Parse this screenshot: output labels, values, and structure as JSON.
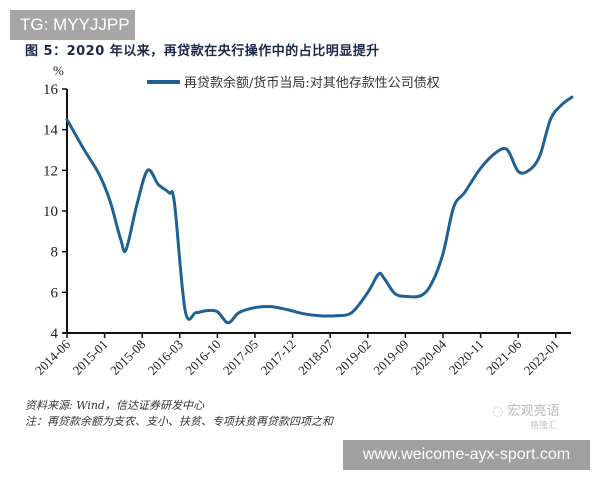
{
  "overlay": {
    "tg_label": "TG: MYYJJPP",
    "url_label": "www.weicome-ayx-sport.com"
  },
  "figure": {
    "title": "图 5：2020 年以来，再贷款在央行操作中的占比明显提升",
    "unit": "%",
    "legend_label": "再贷款余额/货币当局:对其他存款性公司债权",
    "source_line": "资料来源: Wind，信达证券研发中心",
    "note_line": "注：再贷款余额为支农、支小、扶贫、专项扶贫再贷款四项之和",
    "watermark_main": "宏观亮语",
    "watermark_sub": "格隆汇",
    "line_color": "#1f6193"
  },
  "chart_data": {
    "type": "line",
    "title": "图 5：2020 年以来，再贷款在央行操作中的占比明显提升",
    "xlabel": "",
    "ylabel": "%",
    "ylim": [
      4,
      16
    ],
    "yticks": [
      4,
      6,
      8,
      10,
      12,
      14,
      16
    ],
    "xticks": [
      "2014-06",
      "2015-01",
      "2015-08",
      "2016-03",
      "2016-10",
      "2017-05",
      "2017-12",
      "2018-07",
      "2019-02",
      "2019-09",
      "2020-04",
      "2020-11",
      "2021-06",
      "2022-01"
    ],
    "grid": false,
    "legend_position": "top",
    "series": [
      {
        "name": "再贷款余额/货币当局:对其他存款性公司债权",
        "x": [
          "2014-06",
          "2014-09",
          "2014-12",
          "2015-02",
          "2015-04",
          "2015-05",
          "2015-07",
          "2015-09",
          "2015-11",
          "2016-01",
          "2016-02",
          "2016-04",
          "2016-06",
          "2016-08",
          "2016-10",
          "2016-12",
          "2017-02",
          "2017-05",
          "2017-08",
          "2017-11",
          "2018-02",
          "2018-05",
          "2018-08",
          "2018-11",
          "2019-02",
          "2019-04",
          "2019-05",
          "2019-07",
          "2019-09",
          "2019-12",
          "2020-02",
          "2020-04",
          "2020-06",
          "2020-08",
          "2020-11",
          "2021-02",
          "2021-04",
          "2021-06",
          "2021-08",
          "2021-10",
          "2021-12",
          "2022-02",
          "2022-04"
        ],
        "values": [
          14.5,
          13.1,
          11.8,
          10.5,
          8.6,
          8.1,
          10.3,
          12.0,
          11.3,
          10.9,
          10.4,
          5.1,
          5.0,
          5.1,
          5.05,
          4.5,
          5.0,
          5.25,
          5.3,
          5.15,
          4.95,
          4.85,
          4.85,
          5.0,
          6.0,
          6.9,
          6.7,
          5.95,
          5.8,
          5.85,
          6.5,
          7.9,
          10.2,
          10.9,
          12.1,
          12.9,
          13.0,
          11.95,
          12.0,
          12.7,
          14.5,
          15.2,
          15.6
        ]
      }
    ]
  }
}
